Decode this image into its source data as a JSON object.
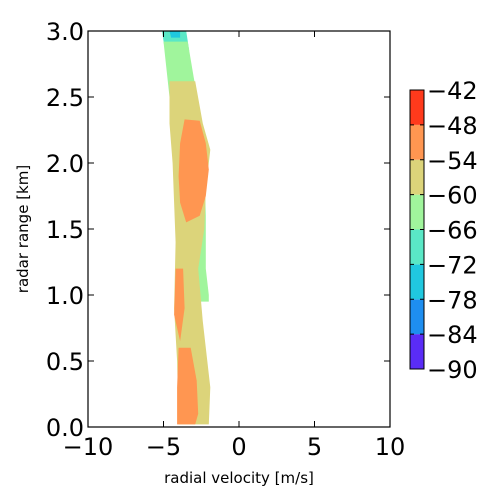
{
  "chart_data": {
    "type": "heatmap",
    "title": "",
    "xlabel": "radial velocity [m/s]",
    "ylabel": "radar range [km]",
    "xlim": [
      -10,
      10
    ],
    "ylim": [
      0.0,
      3.0
    ],
    "x_ticks": [
      "−10",
      "−5",
      "0",
      "5",
      "10"
    ],
    "x_tick_values": [
      -10,
      -5,
      0,
      5,
      10
    ],
    "y_ticks": [
      "0.0",
      "0.5",
      "1.0",
      "1.5",
      "2.0",
      "2.5",
      "3.0"
    ],
    "y_tick_values": [
      0.0,
      0.5,
      1.0,
      1.5,
      2.0,
      2.5,
      3.0
    ],
    "grid": false,
    "colorbar": {
      "levels": [
        -90,
        -84,
        -78,
        -72,
        -66,
        -60,
        -54,
        -48,
        -42
      ],
      "tick_labels": [
        "−90",
        "−84",
        "−78",
        "−72",
        "−66",
        "−60",
        "−54",
        "−48",
        "−42"
      ],
      "colors": [
        "#5a2cf6",
        "#1e8ef0",
        "#20c8df",
        "#5ae8c6",
        "#a0f59c",
        "#dcd47a",
        "#ff9651",
        "#ff3a1c"
      ],
      "placement": "right"
    },
    "regions": [
      {
        "name": "band-outer",
        "level": -66,
        "points": [
          [
            -5.1,
            3.0
          ],
          [
            -3.5,
            3.0
          ],
          [
            -3.3,
            2.85
          ],
          [
            -4.9,
            2.85
          ]
        ]
      },
      {
        "name": "band-cyan",
        "level": -72,
        "points": [
          [
            -4.6,
            3.0
          ],
          [
            -3.9,
            3.0
          ],
          [
            -3.9,
            2.95
          ],
          [
            -4.5,
            2.95
          ]
        ]
      },
      {
        "name": "band-yellow",
        "level": -60,
        "points": [
          [
            -5.0,
            2.92
          ],
          [
            -3.4,
            2.92
          ],
          [
            -3.0,
            2.65
          ],
          [
            -2.6,
            2.4
          ],
          [
            -2.3,
            2.0
          ],
          [
            -2.2,
            1.6
          ],
          [
            -2.2,
            1.2
          ],
          [
            -2.0,
            1.0
          ],
          [
            -2.0,
            0.95
          ],
          [
            -2.6,
            0.95
          ],
          [
            -3.2,
            1.05
          ],
          [
            -3.7,
            1.2
          ],
          [
            -3.6,
            1.6
          ],
          [
            -4.1,
            2.0
          ],
          [
            -4.6,
            2.5
          ]
        ]
      },
      {
        "name": "band-orange",
        "level": -54,
        "points": [
          [
            -4.6,
            2.62
          ],
          [
            -2.9,
            2.62
          ],
          [
            -2.4,
            2.3
          ],
          [
            -1.9,
            2.1
          ],
          [
            -2.2,
            1.8
          ],
          [
            -2.3,
            1.5
          ],
          [
            -2.7,
            1.2
          ],
          [
            -2.4,
            0.8
          ],
          [
            -1.9,
            0.3
          ],
          [
            -2.0,
            0.02
          ],
          [
            -4.0,
            0.02
          ],
          [
            -4.1,
            0.5
          ],
          [
            -4.3,
            0.9
          ],
          [
            -4.2,
            1.4
          ],
          [
            -4.4,
            2.0
          ],
          [
            -4.6,
            2.3
          ]
        ]
      },
      {
        "name": "core-upper",
        "level": -48,
        "points": [
          [
            -3.6,
            2.33
          ],
          [
            -2.6,
            2.32
          ],
          [
            -2.2,
            2.15
          ],
          [
            -2.0,
            1.95
          ],
          [
            -2.2,
            1.75
          ],
          [
            -2.6,
            1.6
          ],
          [
            -3.5,
            1.55
          ],
          [
            -3.9,
            1.7
          ],
          [
            -4.0,
            1.9
          ],
          [
            -3.9,
            2.15
          ]
        ]
      },
      {
        "name": "core-lower",
        "level": -48,
        "points": [
          [
            -4.0,
            0.6
          ],
          [
            -3.2,
            0.6
          ],
          [
            -2.8,
            0.35
          ],
          [
            -2.7,
            0.1
          ],
          [
            -2.9,
            0.02
          ],
          [
            -4.1,
            0.02
          ],
          [
            -4.1,
            0.3
          ]
        ]
      },
      {
        "name": "core-mid",
        "level": -48,
        "points": [
          [
            -4.2,
            1.2
          ],
          [
            -3.7,
            1.2
          ],
          [
            -3.6,
            0.9
          ],
          [
            -3.9,
            0.65
          ],
          [
            -4.3,
            0.85
          ]
        ]
      }
    ]
  }
}
